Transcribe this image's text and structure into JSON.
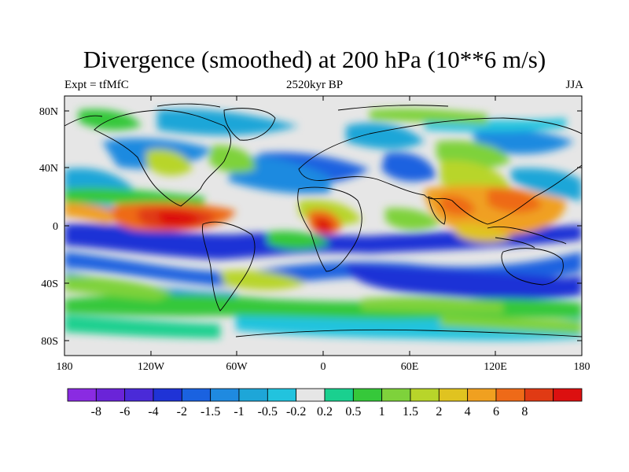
{
  "title": "Divergence (smoothed) at 200 hPa (10**6 m/s)",
  "left_label": "Expt = tfMfC",
  "center_label": "2520kyr BP",
  "right_label": "JJA",
  "lon_ticks": [
    "180",
    "120W",
    "60W",
    "0",
    "60E",
    "120E",
    "180"
  ],
  "lat_ticks": [
    "80N",
    "40N",
    "0",
    "40S",
    "80S"
  ],
  "colorbar": {
    "labels": [
      "-8",
      "-6",
      "-4",
      "-2",
      "-1.5",
      "-1",
      "-0.5",
      "-0.2",
      "0.2",
      "0.5",
      "1",
      "1.5",
      "2",
      "4",
      "6",
      "8"
    ],
    "colors": [
      "#8a2be2",
      "#6a24d8",
      "#4a2ad8",
      "#1f33d6",
      "#1a62e0",
      "#1f8ae0",
      "#1ea6d8",
      "#22c3de",
      "#e6e6e6",
      "#1ad08f",
      "#36c83a",
      "#7ed23b",
      "#b8d52a",
      "#e0c320",
      "#f0a020",
      "#ee6a18",
      "#e03a14",
      "#dc1010"
    ]
  },
  "colors": {
    "land_background": "#e6e6e6",
    "coast": "#000000"
  }
}
